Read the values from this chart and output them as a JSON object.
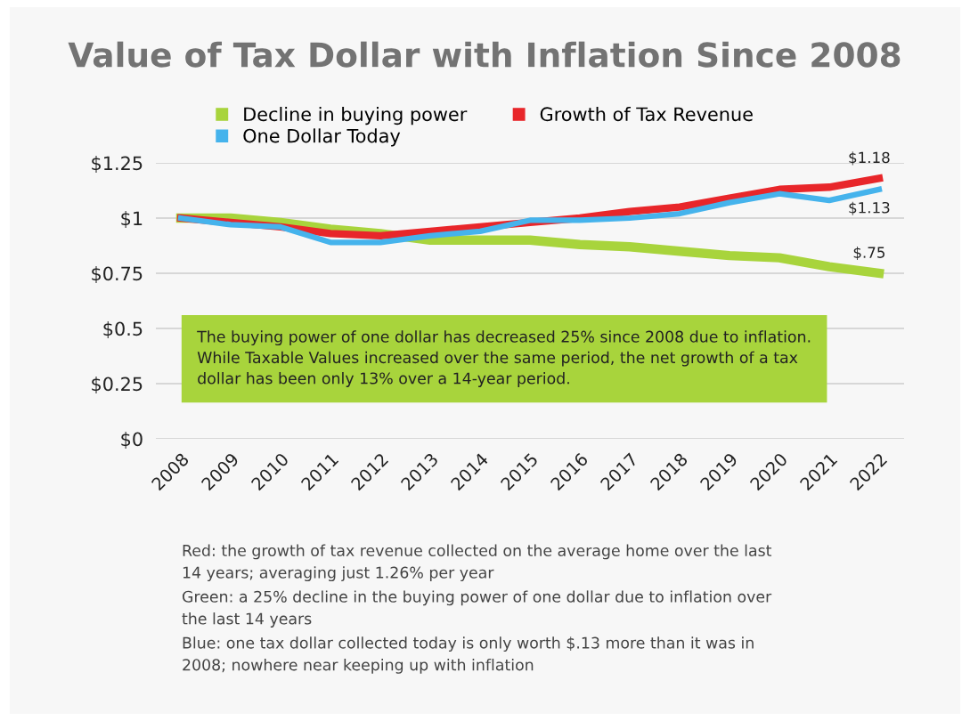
{
  "chart_data": {
    "type": "line",
    "title": "Value of Tax Dollar with Inflation Since 2008",
    "categories": [
      "2008",
      "2009",
      "2010",
      "2011",
      "2012",
      "2013",
      "2014",
      "2015",
      "2016",
      "2017",
      "2018",
      "2019",
      "2020",
      "2021",
      "2022"
    ],
    "series": [
      {
        "name": "Decline in buying power",
        "color": "#a8d43c",
        "values": [
          1.0,
          1.0,
          0.98,
          0.95,
          0.93,
          0.9,
          0.9,
          0.9,
          0.88,
          0.87,
          0.85,
          0.83,
          0.82,
          0.78,
          0.75
        ],
        "value_labels": [
          null,
          null,
          null,
          null,
          null,
          null,
          null,
          null,
          null,
          null,
          null,
          null,
          null,
          null,
          "$.75"
        ]
      },
      {
        "name": "Growth of Tax Revenue",
        "color": "#e8262a",
        "values": [
          1.0,
          0.98,
          0.96,
          0.93,
          0.92,
          0.94,
          0.96,
          0.98,
          1.0,
          1.03,
          1.05,
          1.09,
          1.13,
          1.14,
          1.18
        ],
        "value_labels": [
          null,
          null,
          null,
          null,
          null,
          null,
          null,
          null,
          null,
          null,
          null,
          null,
          null,
          null,
          "$1.18"
        ]
      },
      {
        "name": "One Dollar Today",
        "color": "#45b3ec",
        "values": [
          1.0,
          0.97,
          0.96,
          0.89,
          0.89,
          0.92,
          0.94,
          0.99,
          0.99,
          1.0,
          1.02,
          1.07,
          1.11,
          1.08,
          1.13
        ],
        "value_labels": [
          null,
          null,
          null,
          null,
          null,
          null,
          null,
          null,
          null,
          null,
          null,
          null,
          null,
          null,
          "$1.13"
        ]
      }
    ],
    "ylim": [
      0,
      1.25
    ],
    "yticks": [
      {
        "value": 0,
        "label": "$0"
      },
      {
        "value": 0.25,
        "label": "$0.25"
      },
      {
        "value": 0.5,
        "label": "$0.5"
      },
      {
        "value": 0.75,
        "label": "$0.75"
      },
      {
        "value": 1,
        "label": "$1"
      },
      {
        "value": 1.25,
        "label": "$1.25"
      }
    ],
    "grid": "y",
    "legend": "top",
    "marker": "none",
    "line_style": "solid",
    "annotations": [
      "The buying power of one dollar has decreased 25% since 2008 due to inflation.\nWhile Taxable Values increased over the same period, the net growth of a tax\ndollar has been only 13% over a 14-year period.",
      "Red: the growth of tax revenue collected on the average home over the last\n14 years; averaging just 1.26% per year",
      "Green: a 25% decline in the buying power of one dollar due to inflation over\nthe last 14 years",
      "Blue: one tax dollar collected today is only worth $.13 more than it was in\n2008; nowhere near keeping up with inflation"
    ]
  }
}
